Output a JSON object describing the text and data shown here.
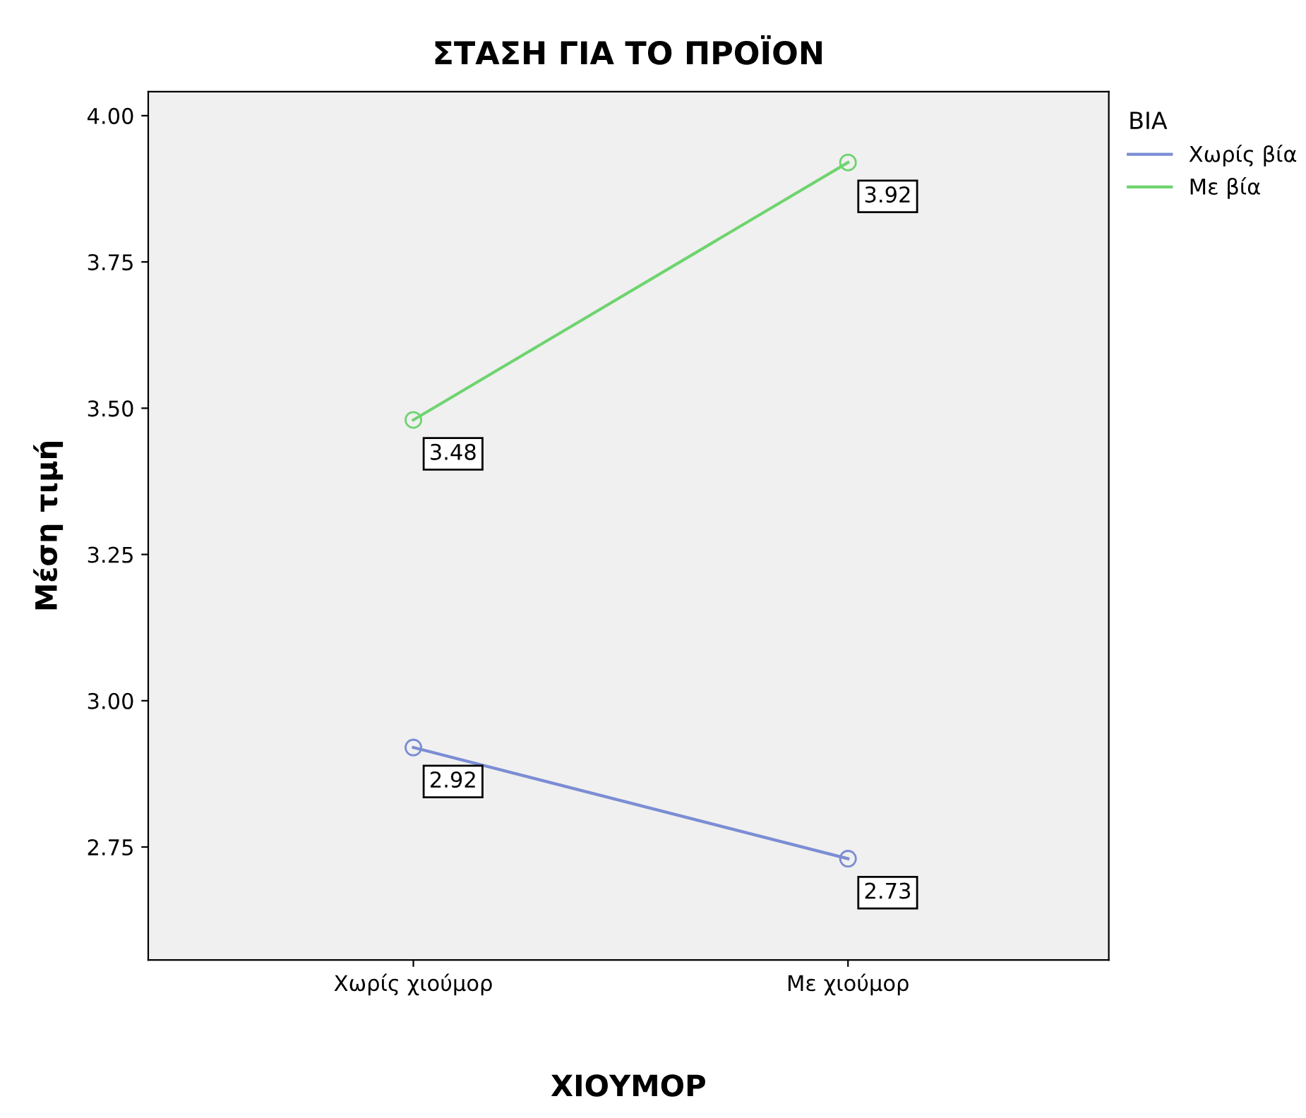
{
  "chart_data": {
    "type": "line",
    "title": "ΣΤΑΣΗ ΓΙΑ ΤΟ ΠΡΟΪΟΝ",
    "xlabel": "ΧΙΟΥΜΟΡ",
    "ylabel": "Μέση τιμή",
    "legend_title": "ΒΙΑ",
    "categories": [
      "Χωρίς χιούμορ",
      "Με χιούμορ"
    ],
    "series": [
      {
        "name": "Χωρίς βία",
        "color": "#7b8dd4",
        "values": [
          2.92,
          2.73
        ]
      },
      {
        "name": "Με βία",
        "color": "#6fd46f",
        "values": [
          3.48,
          3.92
        ]
      }
    ],
    "ylim": [
      2.557,
      4.041
    ],
    "yticks": [
      {
        "value": 2.75,
        "label": "2.75"
      },
      {
        "value": 3.0,
        "label": "3.00"
      },
      {
        "value": 3.25,
        "label": "3.25"
      },
      {
        "value": 3.5,
        "label": "3.50"
      },
      {
        "value": 3.75,
        "label": "3.75"
      },
      {
        "value": 4.0,
        "label": "4.00"
      }
    ],
    "data_labels": true,
    "marker": "circle",
    "line_style": "solid",
    "grid": false,
    "legend": "top right"
  }
}
